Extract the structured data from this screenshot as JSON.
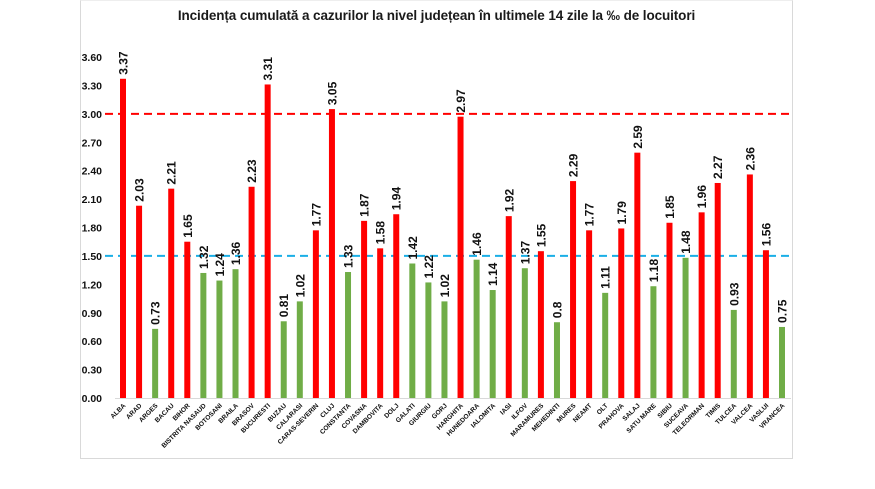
{
  "chart_data": {
    "type": "bar",
    "title": "Incidența cumulată a cazurilor la nivel județean în ultimele 14 zile la ‰ de locuitori",
    "xlabel": "",
    "ylabel": "",
    "ylim": [
      0,
      3.6
    ],
    "yticks": [
      "0.00",
      "0.30",
      "0.60",
      "0.90",
      "1.20",
      "1.50",
      "1.80",
      "2.10",
      "2.40",
      "2.70",
      "3.00",
      "3.30",
      "3.60"
    ],
    "ytick_values": [
      0,
      0.3,
      0.6,
      0.9,
      1.2,
      1.5,
      1.8,
      2.1,
      2.4,
      2.7,
      3.0,
      3.3,
      3.6
    ],
    "grid": false,
    "legend": "none",
    "categories": [
      "ALBA",
      "ARAD",
      "ARGES",
      "BACAU",
      "BIHOR",
      "BISTRITA NASAUD",
      "BOTOSANI",
      "BRAILA",
      "BRASOV",
      "BUCURESTI",
      "BUZAU",
      "CALARASI",
      "CARAS-SEVERIN",
      "CLUJ",
      "CONSTANTA",
      "COVASNA",
      "DAMBOVITA",
      "DOLJ",
      "GALATI",
      "GIURGIU",
      "GORJ",
      "HARGHITA",
      "HUNEDOARA",
      "IALOMITA",
      "IASI",
      "ILFOV",
      "MARAMURES",
      "MEHEDINTI",
      "MURES",
      "NEAMT",
      "OLT",
      "PRAHOVA",
      "SALAJ",
      "SATU MARE",
      "SIBIU",
      "SUCEAVA",
      "TELEORMAN",
      "TIMIS",
      "TULCEA",
      "VALCEA",
      "VASLUI",
      "VRANCEA"
    ],
    "values": [
      3.37,
      2.03,
      0.73,
      2.21,
      1.65,
      1.32,
      1.24,
      1.36,
      2.23,
      3.31,
      0.81,
      1.02,
      1.77,
      3.05,
      1.33,
      1.87,
      1.58,
      1.94,
      1.42,
      1.22,
      1.02,
      2.97,
      1.46,
      1.14,
      1.92,
      1.37,
      1.55,
      0.8,
      2.29,
      1.77,
      1.11,
      1.79,
      2.59,
      1.18,
      1.85,
      1.48,
      1.96,
      2.27,
      0.93,
      2.36,
      1.56,
      0.75
    ],
    "value_labels": [
      "3.37",
      "2.03",
      "0.73",
      "2.21",
      "1.65",
      "1.32",
      "1.24",
      "1.36",
      "2.23",
      "3.31",
      "0.81",
      "1.02",
      "1.77",
      "3.05",
      "1.33",
      "1.87",
      "1.58",
      "1.94",
      "1.42",
      "1.22",
      "1.02",
      "2.97",
      "1.46",
      "1.14",
      "1.92",
      "1.37",
      "1.55",
      "0.8",
      "2.29",
      "1.77",
      "1.11",
      "1.79",
      "2.59",
      "1.18",
      "1.85",
      "1.48",
      "1.96",
      "2.27",
      "0.93",
      "2.36",
      "1.56",
      "0.75"
    ],
    "color_rule": {
      "threshold": 1.5,
      "above_color": "#FF0000",
      "below_or_equal_color": "#70AD47"
    },
    "reference_lines": [
      {
        "name": "threshold-3",
        "value": 3.0,
        "color": "#FF0000",
        "style": "dashed"
      },
      {
        "name": "threshold-1-5",
        "value": 1.5,
        "color": "#1AAFE6",
        "style": "dashed"
      }
    ]
  }
}
